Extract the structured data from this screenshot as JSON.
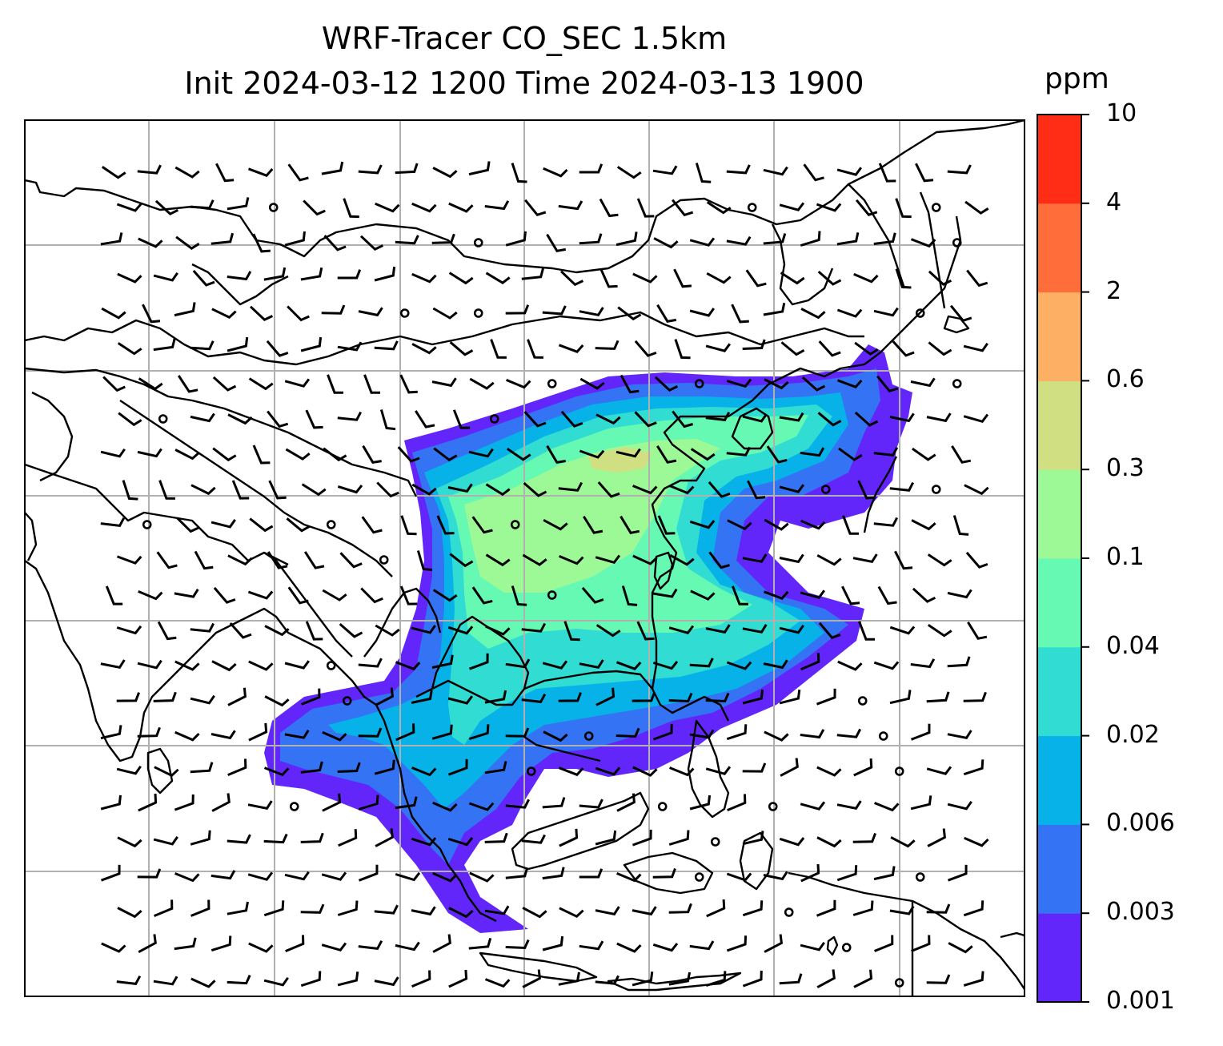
{
  "title": {
    "line1": "WRF-Tracer CO_SEC 1.5km",
    "line2": "Init 2024-03-12 1200 Time 2024-03-13 1900"
  },
  "colorbar": {
    "unit": "ppm",
    "ticks": [
      "10",
      "4",
      "2",
      "0.6",
      "0.3",
      "0.1",
      "0.04",
      "0.02",
      "0.006",
      "0.003",
      "0.001"
    ],
    "colors": [
      "#6226fb",
      "#3474f4",
      "#06b2e8",
      "#31dcd2",
      "#66f9b4",
      "#9cf996",
      "#d1df83",
      "#fdaf63",
      "#ff6e3a",
      "#ff2c16"
    ]
  },
  "plume_colors": {
    "low": "#6226fb",
    "low_mid": "#3474f4",
    "mid": "#06b2e8",
    "mid_high": "#31dcd2",
    "high": "#66f9b4",
    "higher": "#9cf996",
    "peak": "#d1df83"
  }
}
